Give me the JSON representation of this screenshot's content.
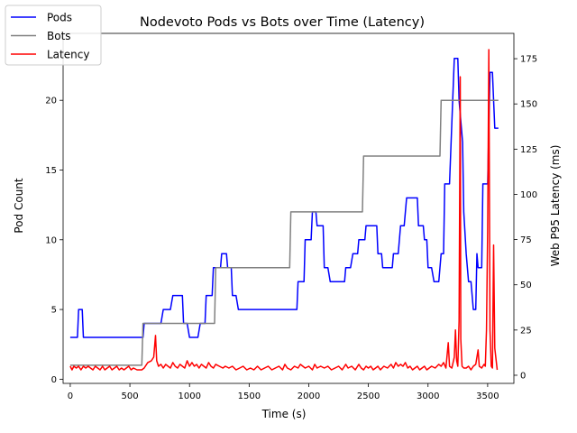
{
  "chart_data": {
    "type": "line",
    "title": "Nodevoto Pods vs Bots over Time (Latency)",
    "xlabel": "Time (s)",
    "ylabel_left": "Pod Count",
    "ylabel_right": "Web P95 Latency (ms)",
    "xlim": [
      -60,
      3720
    ],
    "ylim_left": [
      -0.3,
      24.8
    ],
    "ylim_right": [
      -4.5,
      189
    ],
    "x_ticks": [
      0,
      500,
      1000,
      1500,
      2000,
      2500,
      3000,
      3500
    ],
    "y_ticks_left": [
      0,
      5,
      10,
      15,
      20
    ],
    "y_ticks_right": [
      0,
      25,
      50,
      75,
      100,
      125,
      150,
      175
    ],
    "legend": {
      "position": "top-left"
    },
    "series": [
      {
        "name": "Pods",
        "axis": "left",
        "color": "#0000ff",
        "points": [
          [
            0,
            3
          ],
          [
            60,
            3
          ],
          [
            70,
            5
          ],
          [
            100,
            5
          ],
          [
            110,
            3
          ],
          [
            610,
            3
          ],
          [
            620,
            4
          ],
          [
            760,
            4
          ],
          [
            780,
            5
          ],
          [
            840,
            5
          ],
          [
            860,
            6
          ],
          [
            940,
            6
          ],
          [
            950,
            4
          ],
          [
            980,
            4
          ],
          [
            1000,
            3
          ],
          [
            1070,
            3
          ],
          [
            1090,
            4
          ],
          [
            1130,
            4
          ],
          [
            1140,
            6
          ],
          [
            1190,
            6
          ],
          [
            1200,
            8
          ],
          [
            1260,
            8
          ],
          [
            1270,
            9
          ],
          [
            1310,
            9
          ],
          [
            1320,
            8
          ],
          [
            1350,
            8
          ],
          [
            1360,
            6
          ],
          [
            1390,
            6
          ],
          [
            1410,
            5
          ],
          [
            1900,
            5
          ],
          [
            1910,
            7
          ],
          [
            1960,
            7
          ],
          [
            1970,
            10
          ],
          [
            2020,
            10
          ],
          [
            2030,
            12
          ],
          [
            2060,
            12
          ],
          [
            2070,
            11
          ],
          [
            2120,
            11
          ],
          [
            2130,
            8
          ],
          [
            2160,
            8
          ],
          [
            2180,
            7
          ],
          [
            2300,
            7
          ],
          [
            2310,
            8
          ],
          [
            2350,
            8
          ],
          [
            2370,
            9
          ],
          [
            2410,
            9
          ],
          [
            2420,
            10
          ],
          [
            2470,
            10
          ],
          [
            2480,
            11
          ],
          [
            2570,
            11
          ],
          [
            2580,
            9
          ],
          [
            2610,
            9
          ],
          [
            2620,
            8
          ],
          [
            2700,
            8
          ],
          [
            2710,
            9
          ],
          [
            2750,
            9
          ],
          [
            2770,
            11
          ],
          [
            2800,
            11
          ],
          [
            2820,
            13
          ],
          [
            2910,
            13
          ],
          [
            2920,
            11
          ],
          [
            2960,
            11
          ],
          [
            2970,
            10
          ],
          [
            2990,
            10
          ],
          [
            3000,
            8
          ],
          [
            3030,
            8
          ],
          [
            3050,
            7
          ],
          [
            3090,
            7
          ],
          [
            3110,
            9
          ],
          [
            3130,
            9
          ],
          [
            3140,
            14
          ],
          [
            3180,
            14
          ],
          [
            3220,
            23
          ],
          [
            3250,
            23
          ],
          [
            3260,
            20
          ],
          [
            3290,
            17
          ],
          [
            3300,
            12
          ],
          [
            3320,
            9
          ],
          [
            3340,
            7
          ],
          [
            3360,
            7
          ],
          [
            3370,
            6
          ],
          [
            3380,
            5
          ],
          [
            3400,
            5
          ],
          [
            3410,
            9
          ],
          [
            3420,
            8
          ],
          [
            3450,
            8
          ],
          [
            3460,
            14
          ],
          [
            3500,
            14
          ],
          [
            3520,
            22
          ],
          [
            3540,
            22
          ],
          [
            3560,
            18
          ],
          [
            3590,
            18
          ]
        ]
      },
      {
        "name": "Bots",
        "axis": "left",
        "color": "#808080",
        "points": [
          [
            0,
            1
          ],
          [
            600,
            1
          ],
          [
            610,
            4
          ],
          [
            1210,
            4
          ],
          [
            1220,
            8
          ],
          [
            1840,
            8
          ],
          [
            1850,
            12
          ],
          [
            2450,
            12
          ],
          [
            2460,
            16
          ],
          [
            3100,
            16
          ],
          [
            3110,
            20
          ],
          [
            3590,
            20
          ]
        ]
      },
      {
        "name": "Latency",
        "axis": "right",
        "color": "#ff0000",
        "points": [
          [
            0,
            5
          ],
          [
            15,
            3
          ],
          [
            30,
            5
          ],
          [
            50,
            4
          ],
          [
            70,
            5
          ],
          [
            90,
            3
          ],
          [
            110,
            5
          ],
          [
            130,
            4
          ],
          [
            150,
            5
          ],
          [
            170,
            4
          ],
          [
            190,
            3
          ],
          [
            210,
            5
          ],
          [
            230,
            4
          ],
          [
            250,
            3
          ],
          [
            270,
            5
          ],
          [
            290,
            3
          ],
          [
            310,
            4
          ],
          [
            330,
            5
          ],
          [
            350,
            3
          ],
          [
            370,
            4
          ],
          [
            390,
            5
          ],
          [
            410,
            3
          ],
          [
            430,
            4
          ],
          [
            450,
            3
          ],
          [
            470,
            4
          ],
          [
            490,
            5
          ],
          [
            510,
            3
          ],
          [
            530,
            4
          ],
          [
            560,
            3
          ],
          [
            600,
            3
          ],
          [
            620,
            4
          ],
          [
            650,
            7
          ],
          [
            680,
            8
          ],
          [
            700,
            10
          ],
          [
            715,
            22
          ],
          [
            725,
            8
          ],
          [
            740,
            5
          ],
          [
            760,
            6
          ],
          [
            780,
            4
          ],
          [
            800,
            6
          ],
          [
            820,
            5
          ],
          [
            840,
            4
          ],
          [
            860,
            7
          ],
          [
            880,
            5
          ],
          [
            900,
            4
          ],
          [
            920,
            6
          ],
          [
            940,
            5
          ],
          [
            960,
            4
          ],
          [
            980,
            8
          ],
          [
            1000,
            5
          ],
          [
            1020,
            7
          ],
          [
            1040,
            5
          ],
          [
            1060,
            6
          ],
          [
            1080,
            4
          ],
          [
            1100,
            6
          ],
          [
            1120,
            5
          ],
          [
            1140,
            4
          ],
          [
            1160,
            7
          ],
          [
            1180,
            5
          ],
          [
            1200,
            4
          ],
          [
            1220,
            6
          ],
          [
            1250,
            5
          ],
          [
            1280,
            4
          ],
          [
            1300,
            5
          ],
          [
            1330,
            4
          ],
          [
            1360,
            5
          ],
          [
            1390,
            3
          ],
          [
            1420,
            4
          ],
          [
            1450,
            5
          ],
          [
            1480,
            3
          ],
          [
            1510,
            4
          ],
          [
            1540,
            3
          ],
          [
            1570,
            5
          ],
          [
            1600,
            3
          ],
          [
            1630,
            4
          ],
          [
            1660,
            5
          ],
          [
            1690,
            3
          ],
          [
            1720,
            4
          ],
          [
            1750,
            5
          ],
          [
            1780,
            3
          ],
          [
            1800,
            6
          ],
          [
            1820,
            4
          ],
          [
            1850,
            3
          ],
          [
            1880,
            5
          ],
          [
            1910,
            4
          ],
          [
            1930,
            6
          ],
          [
            1950,
            5
          ],
          [
            1970,
            4
          ],
          [
            2000,
            5
          ],
          [
            2030,
            3
          ],
          [
            2050,
            6
          ],
          [
            2070,
            4
          ],
          [
            2100,
            5
          ],
          [
            2130,
            4
          ],
          [
            2160,
            5
          ],
          [
            2190,
            3
          ],
          [
            2220,
            4
          ],
          [
            2250,
            5
          ],
          [
            2280,
            3
          ],
          [
            2310,
            6
          ],
          [
            2330,
            4
          ],
          [
            2360,
            5
          ],
          [
            2390,
            3
          ],
          [
            2420,
            6
          ],
          [
            2440,
            4
          ],
          [
            2460,
            3
          ],
          [
            2480,
            5
          ],
          [
            2500,
            4
          ],
          [
            2520,
            5
          ],
          [
            2540,
            3
          ],
          [
            2560,
            4
          ],
          [
            2580,
            5
          ],
          [
            2600,
            3
          ],
          [
            2630,
            5
          ],
          [
            2660,
            4
          ],
          [
            2690,
            6
          ],
          [
            2710,
            4
          ],
          [
            2730,
            7
          ],
          [
            2750,
            5
          ],
          [
            2770,
            6
          ],
          [
            2790,
            5
          ],
          [
            2810,
            7
          ],
          [
            2830,
            4
          ],
          [
            2850,
            5
          ],
          [
            2870,
            3
          ],
          [
            2890,
            4
          ],
          [
            2910,
            5
          ],
          [
            2930,
            3
          ],
          [
            2950,
            4
          ],
          [
            2970,
            5
          ],
          [
            2990,
            3
          ],
          [
            3010,
            4
          ],
          [
            3030,
            5
          ],
          [
            3060,
            4
          ],
          [
            3090,
            6
          ],
          [
            3110,
            5
          ],
          [
            3130,
            7
          ],
          [
            3150,
            4
          ],
          [
            3170,
            18
          ],
          [
            3180,
            5
          ],
          [
            3200,
            4
          ],
          [
            3220,
            10
          ],
          [
            3230,
            25
          ],
          [
            3240,
            8
          ],
          [
            3250,
            5
          ],
          [
            3260,
            30
          ],
          [
            3270,
            165
          ],
          [
            3275,
            20
          ],
          [
            3285,
            5
          ],
          [
            3300,
            4
          ],
          [
            3320,
            4
          ],
          [
            3340,
            5
          ],
          [
            3360,
            3
          ],
          [
            3380,
            5
          ],
          [
            3400,
            6
          ],
          [
            3420,
            14
          ],
          [
            3430,
            5
          ],
          [
            3450,
            4
          ],
          [
            3470,
            6
          ],
          [
            3480,
            5
          ],
          [
            3490,
            25
          ],
          [
            3500,
            80
          ],
          [
            3510,
            180
          ],
          [
            3520,
            25
          ],
          [
            3530,
            5
          ],
          [
            3540,
            4
          ],
          [
            3550,
            72
          ],
          [
            3560,
            15
          ],
          [
            3580,
            3
          ]
        ]
      }
    ]
  }
}
